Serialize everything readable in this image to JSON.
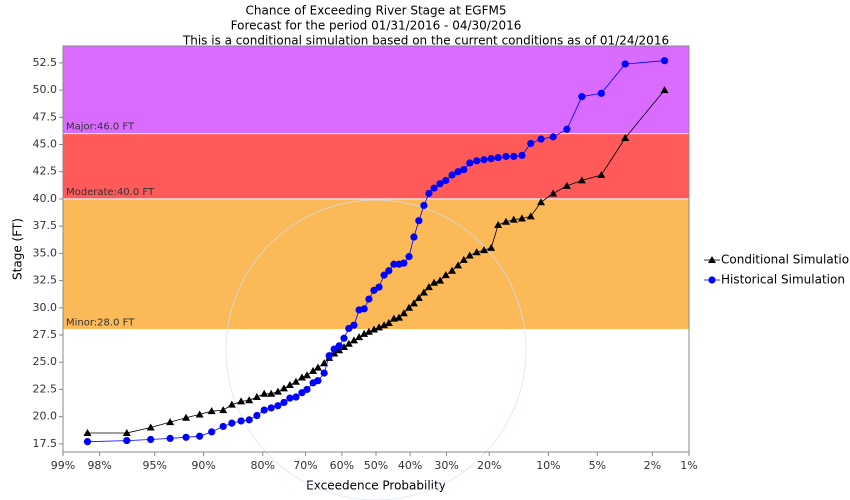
{
  "chart_data": {
    "type": "line",
    "title": "Chance of Exceeding River Stage at EGFM5",
    "subtitle": "Forecast for the period 01/31/2016 - 04/30/2016",
    "note": "This is a conditional simulation based on the current conditions as of 01/24/2016",
    "x_label": "Exceedence Probability",
    "y_label": "Stage (FT)",
    "xscale": "probability",
    "xlim": [
      99,
      1
    ],
    "ylim": [
      16.75,
      54.05
    ],
    "xticks": [
      {
        "value": 99,
        "label": "99%"
      },
      {
        "value": 98,
        "label": "98%"
      },
      {
        "value": 95,
        "label": "95%"
      },
      {
        "value": 90,
        "label": "90%"
      },
      {
        "value": 80,
        "label": "80%"
      },
      {
        "value": 70,
        "label": "70%"
      },
      {
        "value": 60,
        "label": "60%"
      },
      {
        "value": 50,
        "label": "50%"
      },
      {
        "value": 40,
        "label": "40%"
      },
      {
        "value": 30,
        "label": "30%"
      },
      {
        "value": 20,
        "label": "20%"
      },
      {
        "value": 10,
        "label": "10%"
      },
      {
        "value": 5,
        "label": "5%"
      },
      {
        "value": 2,
        "label": "2%"
      },
      {
        "value": 1,
        "label": "1%"
      }
    ],
    "yticks": [
      17.5,
      {
        "value": 20,
        "label": "20.0"
      },
      22.5,
      {
        "value": 25,
        "label": "25.0"
      },
      27.5,
      {
        "value": 30,
        "label": "30.0"
      },
      32.5,
      {
        "value": 35,
        "label": "35.0"
      },
      37.5,
      {
        "value": 40,
        "label": "40.0"
      },
      42.5,
      {
        "value": 45,
        "label": "45.0"
      },
      47.5,
      {
        "value": 50,
        "label": "50.0"
      },
      52.5
    ],
    "bands": [
      {
        "label": "Minor:28.0 FT",
        "from": 28,
        "color": "#fbb958"
      },
      {
        "label": "Moderate:40.0 FT",
        "from": 40,
        "color": "#ff5a5a"
      },
      {
        "label": "Major:46.0 FT",
        "from": 46,
        "color": "#d96cff"
      }
    ],
    "legend": "right",
    "x": [
      98.4,
      96.8,
      95.3,
      93.7,
      92.1,
      90.5,
      88.9,
      87.2,
      85.8,
      84.2,
      82.7,
      81.2,
      79.7,
      78.2,
      76.7,
      75.3,
      73.9,
      72.4,
      70.9,
      69.6,
      68.0,
      66.7,
      65.0,
      63.6,
      62.2,
      60.8,
      59.4,
      58.0,
      56.5,
      55.0,
      53.5,
      52.1,
      50.6,
      49.1,
      47.6,
      46.2,
      44.7,
      43.2,
      41.8,
      40.3,
      38.9,
      37.5,
      36.1,
      34.7,
      33.3,
      31.7,
      30.2,
      28.6,
      27.1,
      25.7,
      24.3,
      22.7,
      21.1,
      19.6,
      18.2,
      16.7,
      15.3,
      13.9,
      12.5,
      11.0,
      9.4,
      7.8,
      6.3,
      4.7,
      3.2,
      1.6
    ],
    "series": [
      {
        "name": "Conditional Simulation",
        "color": "#000000",
        "marker": "triangle",
        "values": [
          18.5,
          18.5,
          19.0,
          19.5,
          19.9,
          20.2,
          20.5,
          20.6,
          21.1,
          21.4,
          21.5,
          21.8,
          22.1,
          22.1,
          22.3,
          22.6,
          22.9,
          23.2,
          23.6,
          23.8,
          24.2,
          24.5,
          24.9,
          25.4,
          25.8,
          26.1,
          26.4,
          26.7,
          27.0,
          27.3,
          27.6,
          27.8,
          28.0,
          28.2,
          28.4,
          28.6,
          29.0,
          29.1,
          29.5,
          30.0,
          30.4,
          30.9,
          31.4,
          31.9,
          32.3,
          32.5,
          33.0,
          33.4,
          33.9,
          34.4,
          34.8,
          35.1,
          35.3,
          35.5,
          37.6,
          37.9,
          38.1,
          38.2,
          38.4,
          39.7,
          40.5,
          41.2,
          41.7,
          42.2,
          45.6,
          50.0
        ]
      },
      {
        "name": "Historical Simulation",
        "color": "#0000ff",
        "marker": "circle",
        "values": [
          17.7,
          17.8,
          17.9,
          18.0,
          18.1,
          18.2,
          18.6,
          19.1,
          19.4,
          19.6,
          19.7,
          20.1,
          20.6,
          20.8,
          21.0,
          21.3,
          21.7,
          21.8,
          22.2,
          22.5,
          23.1,
          23.3,
          24.0,
          25.6,
          26.2,
          26.5,
          27.2,
          28.1,
          28.4,
          29.8,
          29.9,
          30.8,
          31.6,
          31.9,
          33.0,
          33.4,
          34.0,
          34.0,
          34.1,
          34.7,
          36.5,
          38.0,
          39.4,
          40.5,
          41.0,
          41.4,
          41.7,
          42.2,
          42.5,
          42.7,
          43.3,
          43.5,
          43.6,
          43.7,
          43.8,
          43.9,
          43.9,
          44.0,
          45.1,
          45.5,
          45.7,
          46.4,
          49.4,
          49.7,
          52.4,
          52.7
        ]
      }
    ]
  }
}
